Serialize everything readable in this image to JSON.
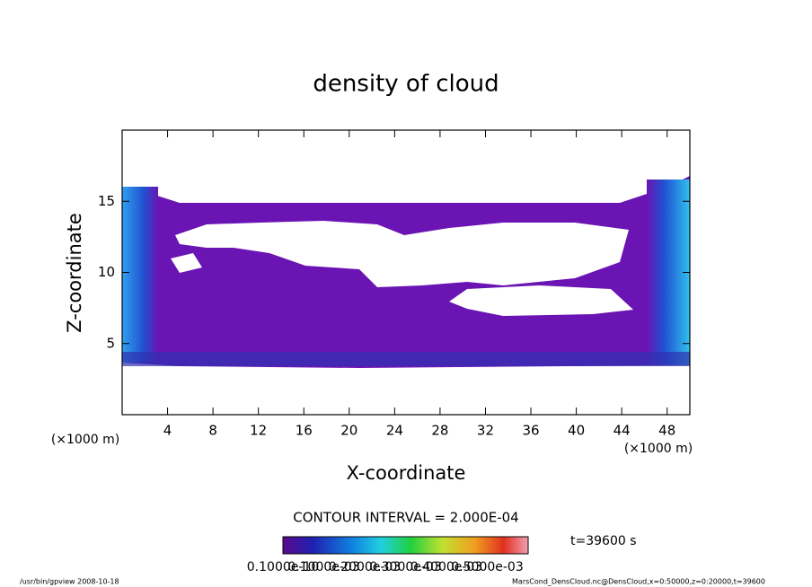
{
  "chart_data": {
    "type": "contour",
    "title": "density of cloud",
    "xlabel": "X-coordinate",
    "ylabel": "Z-coordinate",
    "xunit": "(×1000 m)",
    "yunit": "(×1000 m)",
    "xlim": [
      0,
      50
    ],
    "ylim": [
      0,
      20
    ],
    "xticks": [
      4,
      8,
      12,
      16,
      20,
      24,
      28,
      32,
      36,
      40,
      44,
      48
    ],
    "yticks": [
      5,
      10,
      15
    ],
    "contour_interval": "CONTOUR INTERVAL = 2.000E-04",
    "time": "t=39600 s",
    "colorbar_labels": [
      "0.1000e-10",
      "0.1000e-03",
      "0.2000e-03",
      "0.3000e-03",
      "0.4000e-03",
      "0.5000e-03"
    ],
    "footer_left": "/usr/bin/gpview  2008-10-18",
    "footer_right": "MarsCond_DensCloud.nc@DensCloud,x=0:50000,z=0:20000,t=39600"
  }
}
